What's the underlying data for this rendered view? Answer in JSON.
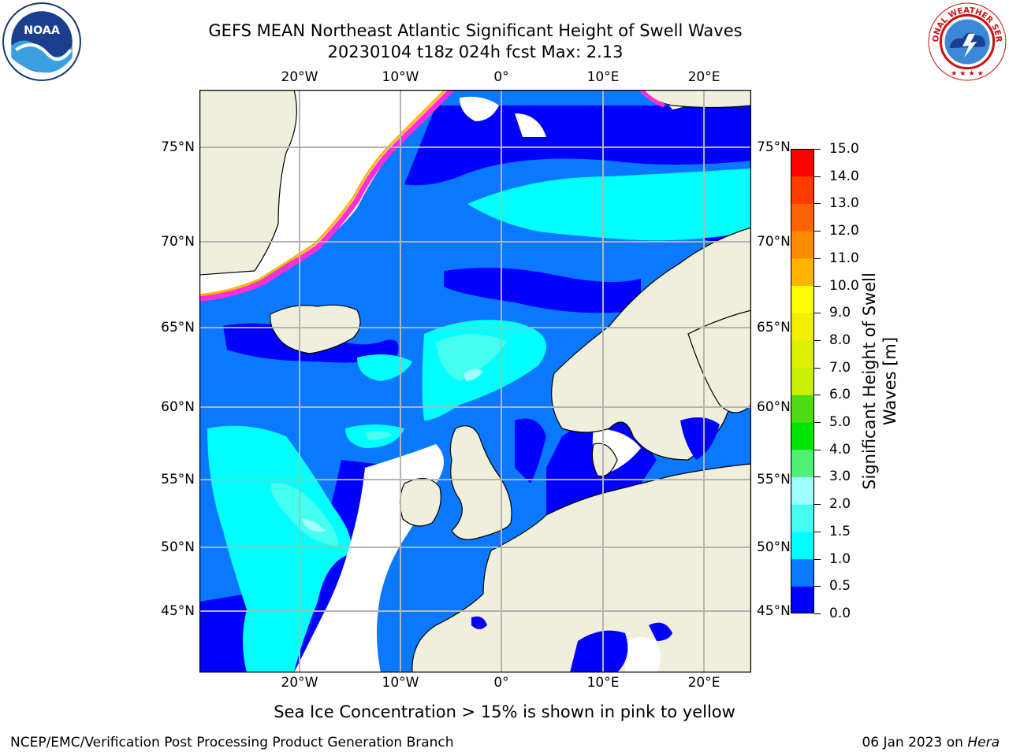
{
  "title": {
    "line1": "GEFS MEAN Northeast Atlantic Significant Height of Swell Waves",
    "line2": "20230104 t18z 024h fcst   Max: 2.13"
  },
  "logos": {
    "left": "noaa-logo",
    "right": "nws-logo",
    "left_text": "NOAA",
    "right_text": "NATIONAL WEATHER SERVICE"
  },
  "map": {
    "lon_ticks": [
      "20°W",
      "10°W",
      "0°",
      "10°E",
      "20°E"
    ],
    "lat_ticks_left": [
      "75°N",
      "70°N",
      "65°N",
      "60°N",
      "55°N",
      "50°N",
      "45°N"
    ],
    "lat_ticks_right": [
      "75°N",
      "70°N",
      "65°N",
      "60°N",
      "55°N",
      "50°N",
      "45°N"
    ],
    "colors": {
      "land": "#efefdc",
      "no_data": "#ffffff",
      "grid": "#b4b4b4"
    }
  },
  "colorbar": {
    "title": "Significant Height of Swell Waves [m]",
    "labels": [
      "15.0",
      "14.0",
      "13.0",
      "12.0",
      "11.0",
      "10.0",
      "9.0",
      "8.0",
      "7.0",
      "6.0",
      "5.0",
      "4.0",
      "3.0",
      "2.0",
      "1.5",
      "1.0",
      "0.5",
      "0.0"
    ],
    "bands": [
      {
        "from": 0.0,
        "to": 0.5,
        "color": "#0000ff"
      },
      {
        "from": 0.5,
        "to": 1.0,
        "color": "#0a78ff"
      },
      {
        "from": 1.0,
        "to": 1.5,
        "color": "#00ffff"
      },
      {
        "from": 1.5,
        "to": 2.0,
        "color": "#46fff0"
      },
      {
        "from": 2.0,
        "to": 3.0,
        "color": "#a0ffff"
      },
      {
        "from": 3.0,
        "to": 4.0,
        "color": "#50f078"
      },
      {
        "from": 4.0,
        "to": 5.0,
        "color": "#00e600"
      },
      {
        "from": 5.0,
        "to": 6.0,
        "color": "#50dc14"
      },
      {
        "from": 6.0,
        "to": 7.0,
        "color": "#c8f000"
      },
      {
        "from": 7.0,
        "to": 8.0,
        "color": "#dcf000"
      },
      {
        "from": 8.0,
        "to": 9.0,
        "color": "#f0f000"
      },
      {
        "from": 9.0,
        "to": 10.0,
        "color": "#ffff00"
      },
      {
        "from": 10.0,
        "to": 11.0,
        "color": "#ffb400"
      },
      {
        "from": 11.0,
        "to": 12.0,
        "color": "#ff8c00"
      },
      {
        "from": 12.0,
        "to": 13.0,
        "color": "#ff6400"
      },
      {
        "from": 13.0,
        "to": 14.0,
        "color": "#ff3c00"
      },
      {
        "from": 14.0,
        "to": 15.0,
        "color": "#ff0000"
      }
    ]
  },
  "caption": "Sea Ice Concentration > 15% is shown in pink to yellow",
  "footer": {
    "left": "NCEP/EMC/Verification Post Processing Product Generation Branch",
    "right_date": "06 Jan 2023 on ",
    "right_host": "Hera"
  }
}
